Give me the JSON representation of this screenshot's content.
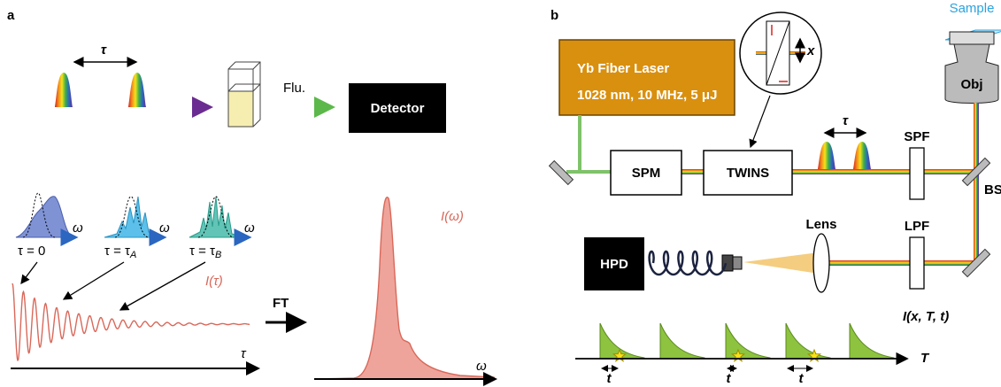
{
  "panel_a": {
    "label": "a",
    "tau": "τ",
    "flu": "Flu.",
    "detector": "Detector",
    "spectra": [
      {
        "omega": "ω",
        "tau_label": "τ = 0"
      },
      {
        "omega": "ω",
        "tau_label": "τ = τ",
        "tau_sub": "A"
      },
      {
        "omega": "ω",
        "tau_label": "τ = τ",
        "tau_sub": "B"
      }
    ],
    "signal_label": "I(τ)",
    "ft": "FT",
    "tau_axis": "τ",
    "spectrum_label": "I(ω)",
    "omega_axis": "ω"
  },
  "panel_b": {
    "label": "b",
    "laser_name": "Yb Fiber Laser",
    "laser_specs": "1028 nm, 10 MHz, 5 μJ",
    "inset_axis": "x",
    "sample": "Sample",
    "objective": "Obj",
    "tau": "τ",
    "spf": "SPF",
    "spm": "SPM",
    "twins": "TWINS",
    "bs": "BS",
    "lens": "Lens",
    "lpf": "LPF",
    "hpd": "HPD",
    "signal_label": "I(x, T, t)",
    "time_axis": "T",
    "delays": [
      "t",
      "t",
      "t"
    ]
  }
}
